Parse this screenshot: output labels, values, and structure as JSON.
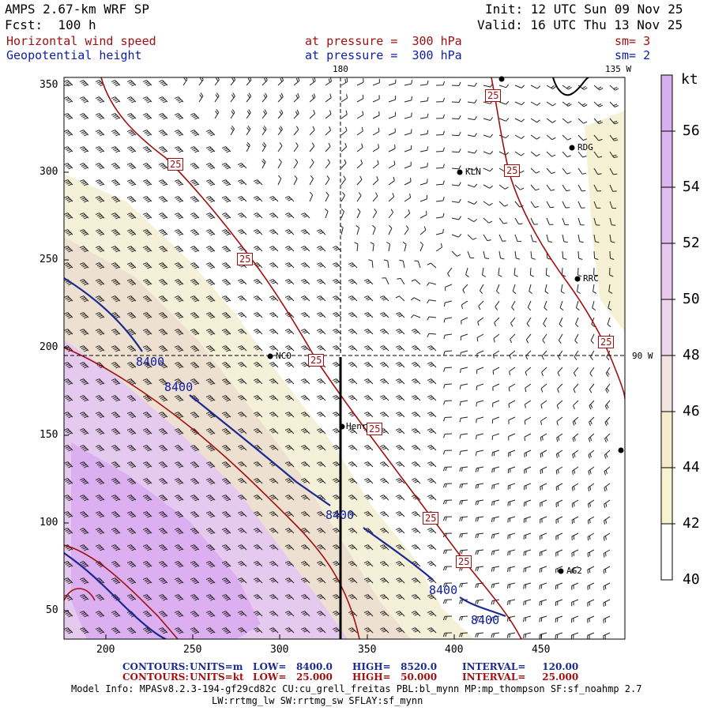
{
  "header": {
    "model_title": "AMPS 2.67-km WRF SP",
    "forecast": "Fcst:  100 h",
    "init": "Init: 12 UTC Sun 09 Nov 25",
    "valid": "Valid: 16 UTC Thu 13 Nov 25",
    "field1_name": "Horizontal wind speed",
    "field1_level": "at pressure =  300 hPa",
    "field1_sm": "sm= 3",
    "field2_name": "Geopotential height",
    "field2_level": "at pressure =  300 hPa",
    "field2_sm": "sm= 2"
  },
  "map": {
    "meridian_labels": [
      "180",
      "135 W",
      "90 W"
    ],
    "x_ticks": [
      "200",
      "250",
      "300",
      "350",
      "400",
      "450"
    ],
    "y_ticks": [
      "350",
      "300",
      "250",
      "200",
      "150",
      "100",
      "50"
    ],
    "stations": [
      "RDG",
      "KLN",
      "RRC",
      "NCO",
      "Henry",
      "AG2"
    ],
    "wind_contour_label": "25",
    "height_contour_label": "8400"
  },
  "colorbar": {
    "unit": "kt",
    "labels": [
      "56",
      "54",
      "52",
      "50",
      "48",
      "46",
      "44",
      "42",
      "40"
    ],
    "colors": [
      "#d7aef0",
      "#dcb5ef",
      "#e2bdef",
      "#e8c8ee",
      "#eed4ea",
      "#f2e2e0",
      "#f5eccc",
      "#f7f3cf",
      "#fefefe"
    ]
  },
  "footer": {
    "row1_title": "CONTOURS:",
    "row1_units": "UNITS=m",
    "row1_low": "LOW=   8400.0",
    "row1_high": "HIGH=   8520.0",
    "row1_interval": "INTERVAL=     120.00",
    "row2_title": "CONTOURS:",
    "row2_units": "UNITS=kt",
    "row2_low": "LOW=   25.000",
    "row2_high": "HIGH=   50.000",
    "row2_interval": "INTERVAL=     25.000",
    "model_info": "Model Info: MPASv8.2.3-194-gf29cd82c CU:cu_grell_freitas PBL:bl_mynn MP:mp_thompson SF:sf_noahmp 2.7",
    "model_info2": "LW:rrtmg_lw SW:rrtmg_sw SFLAY:sf_mynn"
  }
}
